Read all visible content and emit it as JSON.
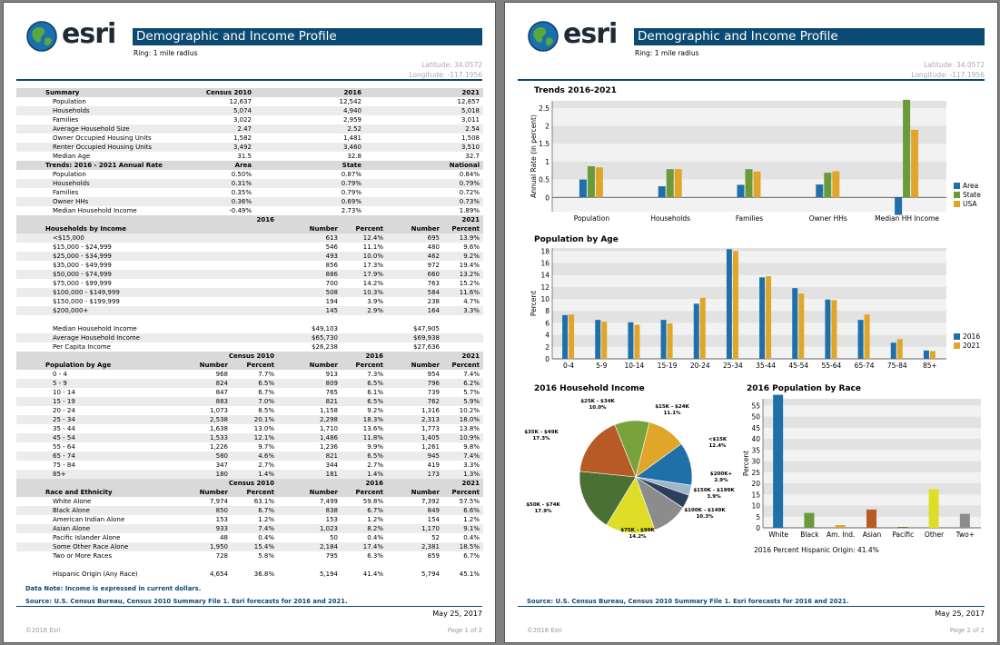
{
  "report": {
    "logo_text": "esri",
    "title": "Demographic and Income Profile",
    "ring": "Ring: 1 mile radius",
    "latitude": "Latitude: 34.0572",
    "longitude": "Longitude: -117.1956",
    "data_note": "Data Note: Income is expressed in current dollars.",
    "source": "Source: U.S. Census Bureau, Census 2010 Summary File 1.  Esri forecasts for 2016 and 2021.",
    "date": "May 25, 2017",
    "copyright": "©2016 Esri",
    "page1": "Page 1 of 2",
    "page2": "Page 2 of 2"
  },
  "summary": {
    "header": [
      "Summary",
      "Census 2010",
      "2016",
      "2021"
    ],
    "rows": [
      [
        "Population",
        "12,637",
        "12,542",
        "12,857"
      ],
      [
        "Households",
        "5,074",
        "4,940",
        "5,018"
      ],
      [
        "Families",
        "3,022",
        "2,959",
        "3,011"
      ],
      [
        "Average Household Size",
        "2.47",
        "2.52",
        "2.54"
      ],
      [
        "Owner Occupied Housing Units",
        "1,582",
        "1,481",
        "1,508"
      ],
      [
        "Renter Occupied Housing Units",
        "3,492",
        "3,460",
        "3,510"
      ],
      [
        "Median Age",
        "31.5",
        "32.8",
        "32.7"
      ]
    ]
  },
  "trends": {
    "header": [
      "Trends: 2016 - 2021 Annual Rate",
      "Area",
      "State",
      "National"
    ],
    "rows": [
      [
        "Population",
        "0.50%",
        "0.87%",
        "0.84%"
      ],
      [
        "Households",
        "0.31%",
        "0.79%",
        "0.79%"
      ],
      [
        "Families",
        "0.35%",
        "0.79%",
        "0.72%"
      ],
      [
        "Owner HHs",
        "0.36%",
        "0.69%",
        "0.73%"
      ],
      [
        "Median Household Income",
        "-0.49%",
        "2.73%",
        "1.89%"
      ]
    ]
  },
  "households_by_income": {
    "years": [
      "2016",
      "2021"
    ],
    "header": [
      "Households by Income",
      "Number",
      "Percent",
      "Number",
      "Percent"
    ],
    "rows": [
      [
        "<$15,000",
        "613",
        "12.4%",
        "695",
        "13.9%"
      ],
      [
        "$15,000 - $24,999",
        "546",
        "11.1%",
        "480",
        "9.6%"
      ],
      [
        "$25,000 - $34,999",
        "493",
        "10.0%",
        "462",
        "9.2%"
      ],
      [
        "$35,000 - $49,999",
        "856",
        "17.3%",
        "972",
        "19.4%"
      ],
      [
        "$50,000 - $74,999",
        "886",
        "17.9%",
        "660",
        "13.2%"
      ],
      [
        "$75,000 - $99,999",
        "700",
        "14.2%",
        "763",
        "15.2%"
      ],
      [
        "$100,000 - $149,999",
        "508",
        "10.3%",
        "584",
        "11.6%"
      ],
      [
        "$150,000 - $199,999",
        "194",
        "3.9%",
        "238",
        "4.7%"
      ],
      [
        "$200,000+",
        "145",
        "2.9%",
        "164",
        "3.3%"
      ]
    ],
    "summary_rows": [
      [
        "Median Household Income",
        "$49,103",
        "$47,905"
      ],
      [
        "Average Household Income",
        "$65,730",
        "$69,938"
      ],
      [
        "Per Capita Income",
        "$26,238",
        "$27,636"
      ]
    ]
  },
  "population_by_age": {
    "years": [
      "Census 2010",
      "2016",
      "2021"
    ],
    "header": [
      "Population by Age",
      "Number",
      "Percent",
      "Number",
      "Percent",
      "Number",
      "Percent"
    ],
    "rows": [
      [
        "0 - 4",
        "968",
        "7.7%",
        "913",
        "7.3%",
        "954",
        "7.4%"
      ],
      [
        "5 - 9",
        "824",
        "6.5%",
        "809",
        "6.5%",
        "796",
        "6.2%"
      ],
      [
        "10 - 14",
        "847",
        "6.7%",
        "765",
        "6.1%",
        "739",
        "5.7%"
      ],
      [
        "15 - 19",
        "883",
        "7.0%",
        "821",
        "6.5%",
        "762",
        "5.9%"
      ],
      [
        "20 - 24",
        "1,073",
        "8.5%",
        "1,158",
        "9.2%",
        "1,316",
        "10.2%"
      ],
      [
        "25 - 34",
        "2,538",
        "20.1%",
        "2,298",
        "18.3%",
        "2,313",
        "18.0%"
      ],
      [
        "35 - 44",
        "1,638",
        "13.0%",
        "1,710",
        "13.6%",
        "1,773",
        "13.8%"
      ],
      [
        "45 - 54",
        "1,533",
        "12.1%",
        "1,486",
        "11.8%",
        "1,405",
        "10.9%"
      ],
      [
        "55 - 64",
        "1,226",
        "9.7%",
        "1,236",
        "9.9%",
        "1,261",
        "9.8%"
      ],
      [
        "65 - 74",
        "580",
        "4.6%",
        "821",
        "6.5%",
        "945",
        "7.4%"
      ],
      [
        "75 - 84",
        "347",
        "2.7%",
        "344",
        "2.7%",
        "419",
        "3.3%"
      ],
      [
        "85+",
        "180",
        "1.4%",
        "181",
        "1.4%",
        "173",
        "1.3%"
      ]
    ]
  },
  "race": {
    "years": [
      "Census 2010",
      "2016",
      "2021"
    ],
    "header": [
      "Race and Ethnicity",
      "Number",
      "Percent",
      "Number",
      "Percent",
      "Number",
      "Percent"
    ],
    "rows": [
      [
        "White Alone",
        "7,974",
        "63.1%",
        "7,499",
        "59.8%",
        "7,392",
        "57.5%"
      ],
      [
        "Black Alone",
        "850",
        "6.7%",
        "838",
        "6.7%",
        "849",
        "6.6%"
      ],
      [
        "American Indian Alone",
        "153",
        "1.2%",
        "153",
        "1.2%",
        "154",
        "1.2%"
      ],
      [
        "Asian Alone",
        "933",
        "7.4%",
        "1,023",
        "8.2%",
        "1,170",
        "9.1%"
      ],
      [
        "Pacific Islander Alone",
        "48",
        "0.4%",
        "50",
        "0.4%",
        "52",
        "0.4%"
      ],
      [
        "Some Other Race Alone",
        "1,950",
        "15.4%",
        "2,184",
        "17.4%",
        "2,381",
        "18.5%"
      ],
      [
        "Two or More Races",
        "728",
        "5.8%",
        "795",
        "6.3%",
        "859",
        "6.7%"
      ]
    ],
    "hispanic": [
      "Hispanic Origin (Any Race)",
      "4,654",
      "36.8%",
      "5,194",
      "41.4%",
      "5,794",
      "45.1%"
    ]
  },
  "chart_data": [
    {
      "type": "bar",
      "title": "Trends 2016-2021",
      "ylabel": "Annual Rate (in percent)",
      "categories": [
        "Population",
        "Households",
        "Families",
        "Owner HHs",
        "Median HH Income"
      ],
      "series": [
        {
          "name": "Area",
          "color": "#1f6fa8",
          "values": [
            0.5,
            0.31,
            0.35,
            0.36,
            -0.49
          ]
        },
        {
          "name": "State",
          "color": "#6a9a3c",
          "values": [
            0.87,
            0.79,
            0.79,
            0.69,
            2.73
          ]
        },
        {
          "name": "USA",
          "color": "#e0a62a",
          "values": [
            0.84,
            0.79,
            0.72,
            0.73,
            1.89
          ]
        }
      ],
      "yticks": [
        "0",
        "0.5",
        "1",
        "1.5",
        "2",
        "2.5"
      ],
      "ylim": [
        -0.4,
        2.7
      ],
      "legend": "right"
    },
    {
      "type": "bar",
      "title": "Population by Age",
      "ylabel": "Percent",
      "categories": [
        "0-4",
        "5-9",
        "10-14",
        "15-19",
        "20-24",
        "25-34",
        "35-44",
        "45-54",
        "55-64",
        "65-74",
        "75-84",
        "85+"
      ],
      "series": [
        {
          "name": "2016",
          "color": "#1f6fa8",
          "values": [
            7.3,
            6.5,
            6.1,
            6.5,
            9.2,
            18.3,
            13.6,
            11.8,
            9.9,
            6.5,
            2.7,
            1.4
          ]
        },
        {
          "name": "2021",
          "color": "#e0a62a",
          "values": [
            7.4,
            6.2,
            5.7,
            5.9,
            10.2,
            18.0,
            13.8,
            10.9,
            9.8,
            7.4,
            3.3,
            1.3
          ]
        }
      ],
      "yticks": [
        "0",
        "2",
        "4",
        "6",
        "8",
        "10",
        "12",
        "14",
        "16",
        "18"
      ],
      "ylim": [
        0,
        18.5
      ],
      "legend": "right"
    },
    {
      "type": "pie",
      "title": "2016 Household Income",
      "slices": [
        {
          "label": "<$15K",
          "pct": "12.4%",
          "value": 12.4,
          "color": "#1f6fa8"
        },
        {
          "label": "$200K+",
          "pct": "2.9%",
          "value": 2.9,
          "color": "#9fb6c8"
        },
        {
          "label": "$150K - $199K",
          "pct": "3.9%",
          "value": 3.9,
          "color": "#2c3f5a"
        },
        {
          "label": "$100K - $149K",
          "pct": "10.3%",
          "value": 10.3,
          "color": "#8c8c8c"
        },
        {
          "label": "$75K - $99K",
          "pct": "14.2%",
          "value": 14.2,
          "color": "#dede28"
        },
        {
          "label": "$50K - $74K",
          "pct": "17.9%",
          "value": 17.9,
          "color": "#4b7034"
        },
        {
          "label": "$35K - $49K",
          "pct": "17.3%",
          "value": 17.3,
          "color": "#b85a25"
        },
        {
          "label": "$25K - $34K",
          "pct": "10.0%",
          "value": 10.0,
          "color": "#7aa23c"
        },
        {
          "label": "$15K - $24K",
          "pct": "11.1%",
          "value": 11.1,
          "color": "#e0a62a"
        }
      ]
    },
    {
      "type": "bar",
      "title": "2016 Population by Race",
      "ylabel": "Percent",
      "categories": [
        "White",
        "Black",
        "Am. Ind.",
        "Asian",
        "Pacific",
        "Other",
        "Two+"
      ],
      "series": [
        {
          "name": "2016",
          "values": [
            59.8,
            6.7,
            1.2,
            8.2,
            0.4,
            17.4,
            6.3
          ],
          "colors": [
            "#1f6fa8",
            "#6a9a3c",
            "#e0a62a",
            "#b85a25",
            "#5a7a34",
            "#dede28",
            "#8c8c8c"
          ]
        }
      ],
      "yticks": [
        "0",
        "5",
        "10",
        "15",
        "20",
        "25",
        "30",
        "35",
        "40",
        "45",
        "50",
        "55"
      ],
      "ylim": [
        0,
        58
      ],
      "footnote": "2016 Percent Hispanic Origin: 41.4%"
    }
  ]
}
